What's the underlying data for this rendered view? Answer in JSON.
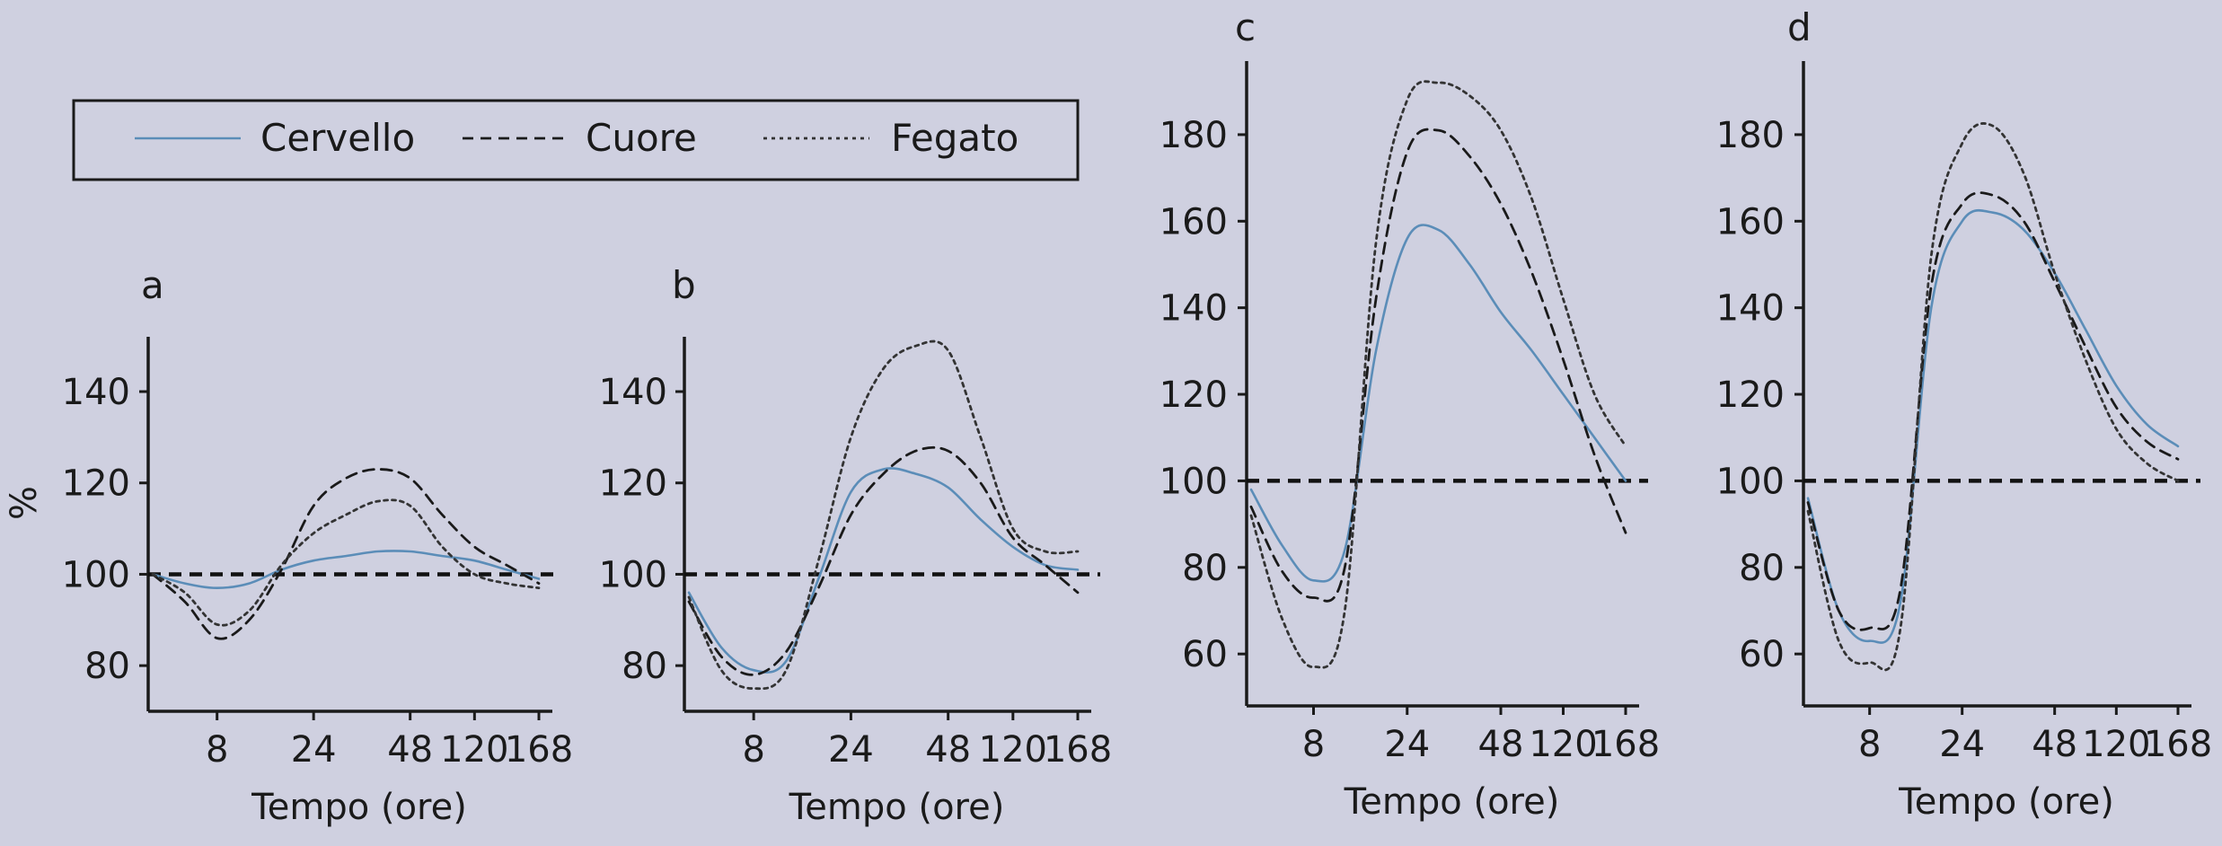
{
  "legend": {
    "items": [
      {
        "label": "Cervello",
        "style": "solid",
        "color": "#5b8db8"
      },
      {
        "label": "Cuore",
        "style": "dashed",
        "color": "#1a1a1a"
      },
      {
        "label": "Fegato",
        "style": "dotted",
        "color": "#333333"
      }
    ]
  },
  "chart_data": [
    {
      "type": "line",
      "panel": "a",
      "ylabel": "%",
      "xlabel": "Tempo (ore)",
      "xticks": [
        "8",
        "24",
        "48",
        "120",
        "168"
      ],
      "yticks": [
        80,
        100,
        120,
        140
      ],
      "ylim": [
        70,
        152
      ],
      "reference_y": 100,
      "series": [
        {
          "name": "Cervello",
          "points": [
            [
              0,
              100
            ],
            [
              1,
              98
            ],
            [
              2,
              97
            ],
            [
              3,
              98
            ],
            [
              4,
              101
            ],
            [
              5,
              103
            ],
            [
              6,
              104
            ],
            [
              7,
              105
            ],
            [
              8,
              105
            ],
            [
              9,
              104
            ],
            [
              10,
              103
            ],
            [
              11,
              101
            ],
            [
              12,
              99
            ]
          ]
        },
        {
          "name": "Cuore",
          "points": [
            [
              0,
              100
            ],
            [
              1,
              94
            ],
            [
              2,
              86
            ],
            [
              3,
              90
            ],
            [
              4,
              101
            ],
            [
              5,
              115
            ],
            [
              6,
              121
            ],
            [
              7,
              123
            ],
            [
              8,
              121
            ],
            [
              9,
              113
            ],
            [
              10,
              106
            ],
            [
              11,
              102
            ],
            [
              12,
              98
            ]
          ]
        },
        {
          "name": "Fegato",
          "points": [
            [
              0,
              100
            ],
            [
              1,
              96
            ],
            [
              2,
              89
            ],
            [
              3,
              92
            ],
            [
              4,
              102
            ],
            [
              5,
              109
            ],
            [
              6,
              113
            ],
            [
              7,
              116
            ],
            [
              8,
              115
            ],
            [
              9,
              106
            ],
            [
              10,
              100
            ],
            [
              11,
              98
            ],
            [
              12,
              97
            ]
          ]
        }
      ]
    },
    {
      "type": "line",
      "panel": "b",
      "xlabel": "Tempo (ore)",
      "xticks": [
        "8",
        "24",
        "48",
        "120",
        "168"
      ],
      "yticks": [
        80,
        100,
        120,
        140
      ],
      "ylim": [
        70,
        152
      ],
      "reference_y": 100,
      "series": [
        {
          "name": "Cervello",
          "points": [
            [
              0,
              96
            ],
            [
              1,
              84
            ],
            [
              2,
              79
            ],
            [
              3,
              81
            ],
            [
              4,
              99
            ],
            [
              5,
              118
            ],
            [
              6,
              123
            ],
            [
              7,
              122
            ],
            [
              8,
              119
            ],
            [
              9,
              112
            ],
            [
              10,
              106
            ],
            [
              11,
              102
            ],
            [
              12,
              101
            ]
          ]
        },
        {
          "name": "Cuore",
          "points": [
            [
              0,
              94
            ],
            [
              1,
              82
            ],
            [
              2,
              78
            ],
            [
              3,
              83
            ],
            [
              4,
              97
            ],
            [
              5,
              113
            ],
            [
              6,
              122
            ],
            [
              7,
              127
            ],
            [
              8,
              127
            ],
            [
              9,
              120
            ],
            [
              10,
              108
            ],
            [
              11,
              102
            ],
            [
              12,
              96
            ]
          ]
        },
        {
          "name": "Fegato",
          "points": [
            [
              0,
              95
            ],
            [
              1,
              79
            ],
            [
              2,
              75
            ],
            [
              3,
              79
            ],
            [
              4,
              103
            ],
            [
              5,
              130
            ],
            [
              6,
              145
            ],
            [
              7,
              150
            ],
            [
              8,
              149
            ],
            [
              9,
              130
            ],
            [
              10,
              110
            ],
            [
              11,
              105
            ],
            [
              12,
              105
            ]
          ]
        }
      ]
    },
    {
      "type": "line",
      "panel": "c",
      "xlabel": "Tempo (ore)",
      "xticks": [
        "8",
        "24",
        "48",
        "120",
        "168"
      ],
      "yticks": [
        60,
        80,
        100,
        120,
        140,
        160,
        180
      ],
      "ylim": [
        48,
        197
      ],
      "reference_y": 100,
      "series": [
        {
          "name": "Cervello",
          "points": [
            [
              0,
              98
            ],
            [
              1,
              85
            ],
            [
              2,
              77
            ],
            [
              3,
              84
            ],
            [
              4,
              130
            ],
            [
              5,
              156
            ],
            [
              6,
              158
            ],
            [
              7,
              150
            ],
            [
              8,
              139
            ],
            [
              9,
              130
            ],
            [
              10,
              120
            ],
            [
              11,
              110
            ],
            [
              12,
              100
            ]
          ]
        },
        {
          "name": "Cuore",
          "points": [
            [
              0,
              94
            ],
            [
              1,
              79
            ],
            [
              2,
              73
            ],
            [
              3,
              80
            ],
            [
              4,
              142
            ],
            [
              5,
              176
            ],
            [
              6,
              181
            ],
            [
              7,
              175
            ],
            [
              8,
              164
            ],
            [
              9,
              148
            ],
            [
              10,
              128
            ],
            [
              11,
              106
            ],
            [
              12,
              88
            ]
          ]
        },
        {
          "name": "Fegato",
          "points": [
            [
              0,
              92
            ],
            [
              1,
              68
            ],
            [
              2,
              57
            ],
            [
              3,
              70
            ],
            [
              4,
              155
            ],
            [
              5,
              188
            ],
            [
              6,
              192
            ],
            [
              7,
              189
            ],
            [
              8,
              181
            ],
            [
              9,
              165
            ],
            [
              10,
              142
            ],
            [
              11,
              120
            ],
            [
              12,
              108
            ]
          ]
        }
      ]
    },
    {
      "type": "line",
      "panel": "d",
      "xlabel": "Tempo (ore)",
      "xticks": [
        "8",
        "24",
        "48",
        "120",
        "168"
      ],
      "yticks": [
        60,
        80,
        100,
        120,
        140,
        160,
        180
      ],
      "ylim": [
        48,
        197
      ],
      "reference_y": 100,
      "series": [
        {
          "name": "Cervello",
          "points": [
            [
              0,
              96
            ],
            [
              1,
              70
            ],
            [
              2,
              63
            ],
            [
              3,
              72
            ],
            [
              4,
              140
            ],
            [
              5,
              160
            ],
            [
              6,
              162
            ],
            [
              7,
              158
            ],
            [
              8,
              148
            ],
            [
              9,
              135
            ],
            [
              10,
              122
            ],
            [
              11,
              113
            ],
            [
              12,
              108
            ]
          ]
        },
        {
          "name": "Cuore",
          "points": [
            [
              0,
              95
            ],
            [
              1,
              70
            ],
            [
              2,
              66
            ],
            [
              3,
              75
            ],
            [
              4,
              145
            ],
            [
              5,
              164
            ],
            [
              6,
              166
            ],
            [
              7,
              160
            ],
            [
              8,
              146
            ],
            [
              9,
              131
            ],
            [
              10,
              117
            ],
            [
              11,
              109
            ],
            [
              12,
              105
            ]
          ]
        },
        {
          "name": "Fegato",
          "points": [
            [
              0,
              93
            ],
            [
              1,
              63
            ],
            [
              2,
              58
            ],
            [
              3,
              66
            ],
            [
              4,
              152
            ],
            [
              5,
              178
            ],
            [
              6,
              182
            ],
            [
              7,
              171
            ],
            [
              8,
              148
            ],
            [
              9,
              128
            ],
            [
              10,
              112
            ],
            [
              11,
              104
            ],
            [
              12,
              100
            ]
          ]
        }
      ]
    }
  ]
}
